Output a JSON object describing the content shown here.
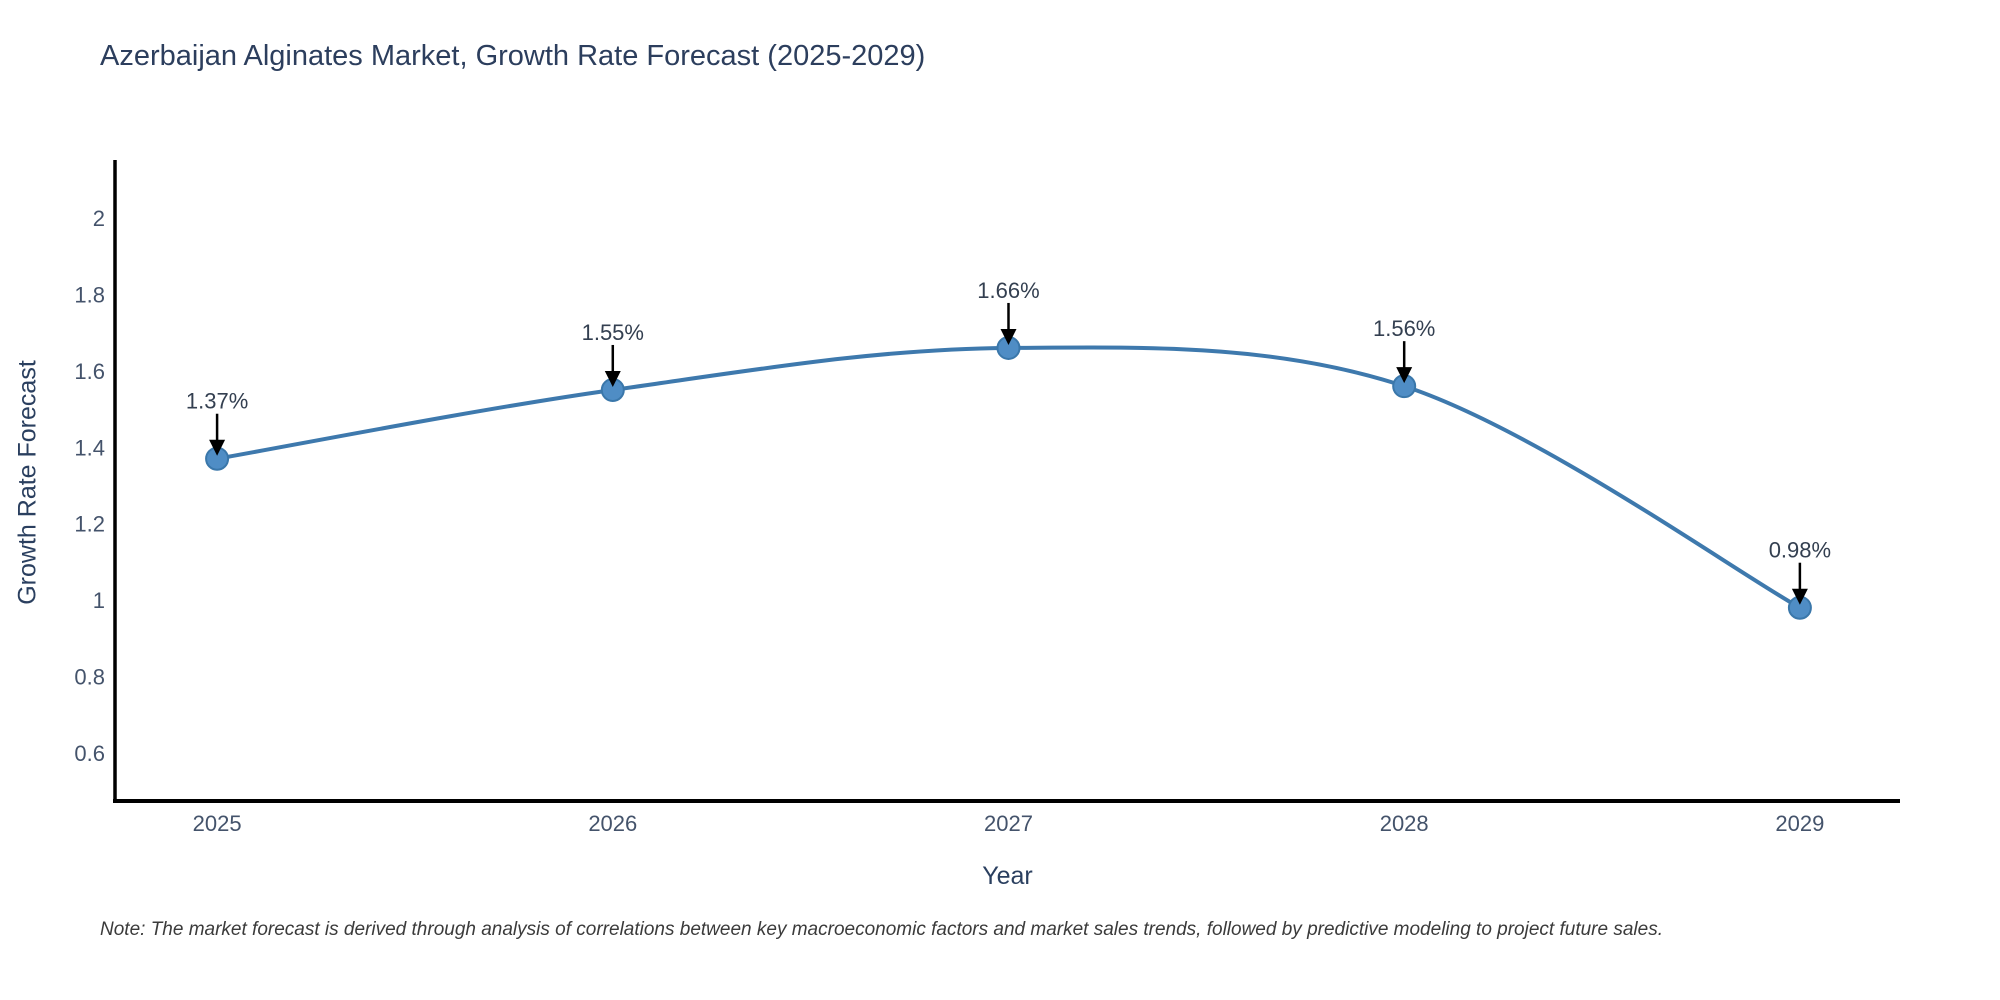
{
  "page": {
    "note": "Note: The market forecast is derived through analysis of correlations between key macroeconomic factors and market sales trends, followed by predictive modeling to project future sales."
  },
  "chart_data": {
    "type": "line",
    "title": "Azerbaijan Alginates Market, Growth Rate Forecast (2025-2029)",
    "xlabel": "Year",
    "ylabel": "Growth Rate Forecast",
    "x": [
      2025,
      2026,
      2027,
      2028,
      2029
    ],
    "categories": [
      "2025",
      "2026",
      "2027",
      "2028",
      "2029"
    ],
    "values": [
      1.37,
      1.55,
      1.66,
      1.56,
      0.98
    ],
    "point_labels": [
      "1.37%",
      "1.55%",
      "1.66%",
      "1.56%",
      "0.98%"
    ],
    "ytick_values": [
      2,
      1.8,
      1.6,
      1.4,
      1.2,
      1,
      0.8,
      0.6
    ],
    "ytick_labels": [
      "2",
      "1.8",
      "1.6",
      "1.4",
      "1.2",
      "1",
      "0.8",
      "0.6"
    ],
    "xlim": [
      2024.742,
      2029.253
    ],
    "ylim": [
      0.474,
      2.152
    ],
    "line_shape": "spline",
    "grid": false,
    "legend": "none",
    "colors": {
      "line": "#3e79ad",
      "marker_fill": "#4f8dc5",
      "marker_edge": "#3a77aa",
      "axis_line": "#000000",
      "title_text": "#2c3e5d",
      "axis_title_text": "#2a3f5f",
      "tick_text": "#44536b",
      "annotation_text": "#333f50",
      "arrow": "#000000",
      "note_text": "#3b3b3b",
      "background": "#ffffff"
    }
  }
}
